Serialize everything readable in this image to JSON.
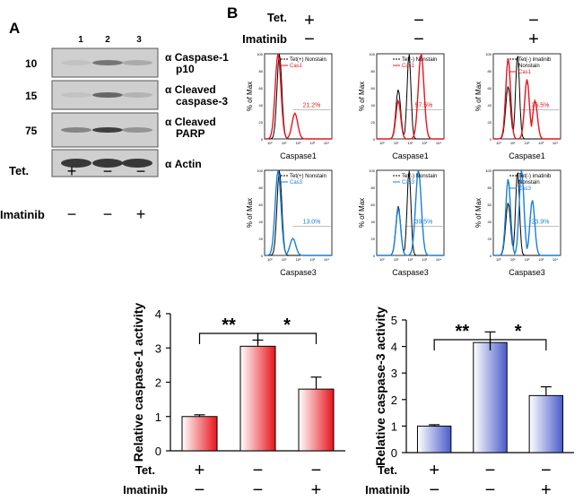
{
  "panel_a": {
    "label": "A",
    "lane_numbers": [
      "1",
      "2",
      "3"
    ],
    "blots": [
      {
        "mw": "10",
        "label_line1": "α Caspase-1",
        "label_line2": "p10",
        "band_intensity": [
          0.05,
          0.55,
          0.2
        ]
      },
      {
        "mw": "15",
        "label_line1": "α Cleaved",
        "label_line2": "caspase-3",
        "band_intensity": [
          0.05,
          0.65,
          0.15
        ]
      },
      {
        "mw": "75",
        "label_line1": "α Cleaved",
        "label_line2": "PARP",
        "band_intensity": [
          0.45,
          0.9,
          0.35
        ]
      },
      {
        "mw": "",
        "label_line1": "α Actin",
        "label_line2": "",
        "band_intensity": [
          0.95,
          0.95,
          0.95
        ]
      }
    ],
    "conditions": [
      {
        "name": "Tet.",
        "values": [
          "+",
          "−",
          "−"
        ]
      },
      {
        "name": "Imatinib",
        "values": [
          "−",
          "−",
          "+"
        ]
      }
    ]
  },
  "panel_b": {
    "label": "B",
    "conditions": [
      {
        "name": "Tet.",
        "values": [
          "+",
          "−",
          "−"
        ]
      },
      {
        "name": "Imatinib",
        "values": [
          "−",
          "−",
          "+"
        ]
      }
    ],
    "y_axis_label": "% of Max",
    "y_ticks": [
      "0",
      "20",
      "40",
      "60",
      "80",
      "100"
    ],
    "x_ticks": [
      "10⁰",
      "10¹",
      "10²",
      "10³",
      "10⁴"
    ],
    "rows": [
      {
        "marker": "Caspase1",
        "color": "#e8141b",
        "plots": [
          {
            "legend_control": "Tet(+) Nonstain",
            "legend_stain": "Cas1",
            "percent": "21.2%"
          },
          {
            "legend_control": "Tet(-) Nonstain",
            "legend_stain": "Cas1",
            "percent": "57.5%"
          },
          {
            "legend_control": "Tet(-) imatinib",
            "legend_control_2": "Nonstain",
            "legend_stain": "Cas1",
            "percent": "36.5%"
          }
        ]
      },
      {
        "marker": "Caspase3",
        "color": "#1a7fd6",
        "plots": [
          {
            "legend_control": "Tet(+) Nonstain",
            "legend_stain": "Cas3",
            "percent": "13.0%"
          },
          {
            "legend_control": "Tet(-) Nonstain",
            "legend_stain": "Cas3",
            "percent": "39.5%"
          },
          {
            "legend_control": "Tet(-) imatinib",
            "legend_control_2": "Nonstain",
            "legend_stain": "Cas3",
            "percent": "23.9%"
          }
        ]
      }
    ]
  },
  "chart_data": [
    {
      "type": "bar",
      "title": "",
      "xlabel": "",
      "ylabel": "Relative caspase-1 activity",
      "categories": [
        "Tet+ / Imatinib−",
        "Tet− / Imatinib−",
        "Tet− / Imatinib+"
      ],
      "values": [
        1.0,
        3.05,
        1.8
      ],
      "errors": [
        0.05,
        0.18,
        0.35
      ],
      "ylim": [
        0,
        4
      ],
      "yticks": [
        "0",
        "1",
        "2",
        "3",
        "4"
      ],
      "color": "#e8141b",
      "significance": [
        {
          "from": 0,
          "to": 1,
          "label": "**"
        },
        {
          "from": 1,
          "to": 2,
          "label": "*"
        }
      ],
      "conditions": [
        {
          "name": "Tet.",
          "values": [
            "+",
            "−",
            "−"
          ]
        },
        {
          "name": "Imatinib",
          "values": [
            "−",
            "−",
            "+"
          ]
        }
      ]
    },
    {
      "type": "bar",
      "title": "",
      "xlabel": "",
      "ylabel": "Relative caspase-3 activity",
      "categories": [
        "Tet+ / Imatinib−",
        "Tet− / Imatinib−",
        "Tet− / Imatinib+"
      ],
      "values": [
        1.0,
        4.15,
        2.15
      ],
      "errors": [
        0.05,
        0.4,
        0.33
      ],
      "ylim": [
        0,
        5
      ],
      "yticks": [
        "0",
        "1",
        "2",
        "3",
        "4",
        "5"
      ],
      "color": "#4a5ccc",
      "significance": [
        {
          "from": 0,
          "to": 1,
          "label": "**"
        },
        {
          "from": 1,
          "to": 2,
          "label": "*"
        }
      ],
      "conditions": [
        {
          "name": "Tet.",
          "values": [
            "+",
            "−",
            "−"
          ]
        },
        {
          "name": "Imatinib",
          "values": [
            "−",
            "−",
            "+"
          ]
        }
      ]
    }
  ]
}
